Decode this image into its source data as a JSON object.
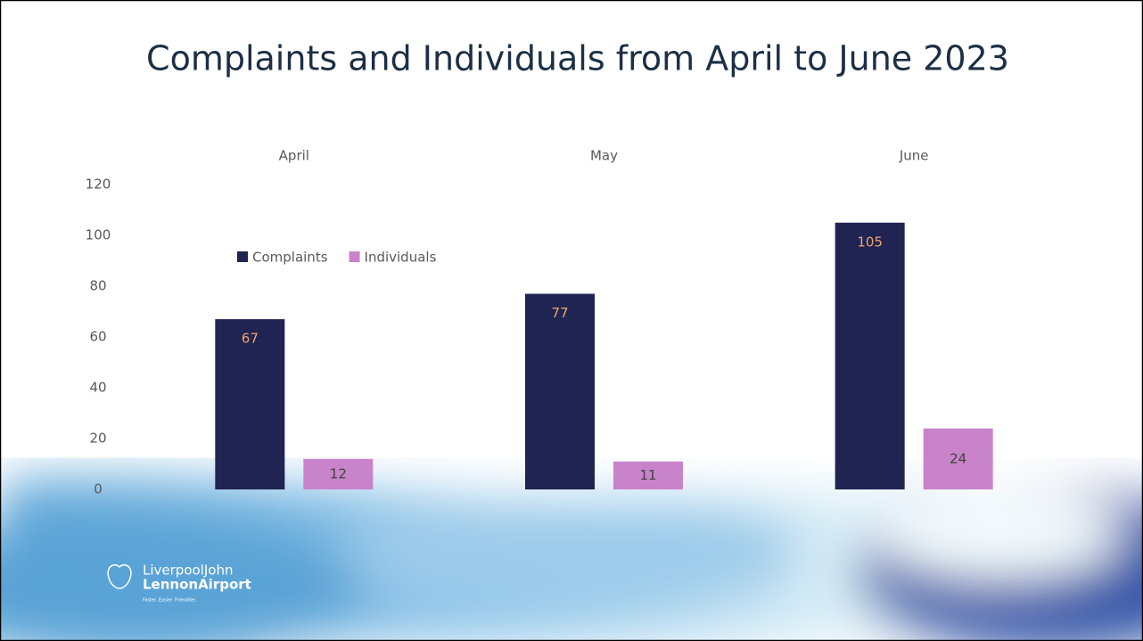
{
  "chart_data": {
    "type": "bar",
    "title": "Complaints and Individuals from April to June 2023",
    "categories": [
      "April",
      "May",
      "June"
    ],
    "series": [
      {
        "name": "Complaints",
        "color": "#1f2452",
        "values": [
          67,
          77,
          105
        ]
      },
      {
        "name": "Individuals",
        "color": "#c983cb",
        "values": [
          12,
          11,
          24
        ]
      }
    ],
    "ylim": [
      0,
      120
    ],
    "yticks": [
      0,
      20,
      40,
      60,
      80,
      100,
      120
    ],
    "legend": "upper left"
  },
  "branding": {
    "line1": "LiverpoolJohn",
    "line2": "LennonAirport",
    "tagline": "Faster. Easier. Friendlier."
  }
}
